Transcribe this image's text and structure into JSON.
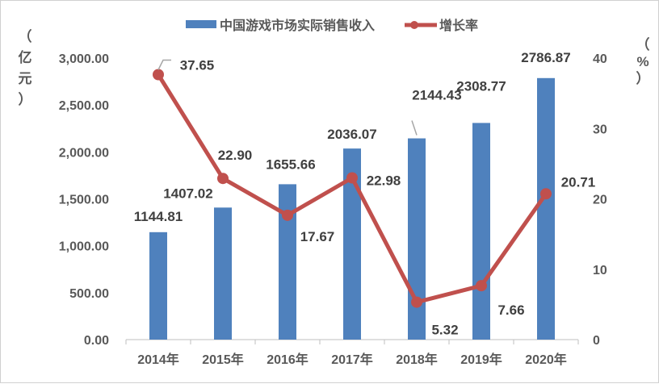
{
  "chart_data": {
    "type": "bar+line",
    "categories": [
      "2014年",
      "2015年",
      "2016年",
      "2017年",
      "2018年",
      "2019年",
      "2020年"
    ],
    "series": [
      {
        "name": "中国游戏市场实际销售收入",
        "type": "bar",
        "axis": "left",
        "color": "#4f81bd",
        "values": [
          1144.81,
          1407.02,
          1655.66,
          2036.07,
          2144.43,
          2308.77,
          2786.87
        ],
        "labels": [
          "1144.81",
          "1407.02",
          "1655.66",
          "2036.07",
          "2144.43",
          "2308.77",
          "2786.87"
        ]
      },
      {
        "name": "增长率",
        "type": "line",
        "axis": "right",
        "color": "#c0504d",
        "values": [
          37.65,
          22.9,
          17.67,
          22.98,
          5.32,
          7.66,
          20.71
        ],
        "labels": [
          "37.65",
          "22.90",
          "17.67",
          "22.98",
          "5.32",
          "7.66",
          "20.71"
        ]
      }
    ],
    "left_axis": {
      "label_chars": [
        "（",
        "亿",
        "元",
        "）"
      ],
      "ylim": [
        0,
        3000
      ],
      "ticks": [
        "0.00",
        "500.00",
        "1,000.00",
        "1,500.00",
        "2,000.00",
        "2,500.00",
        "3,000.00"
      ]
    },
    "right_axis": {
      "label_chars": [
        "（",
        "%",
        "）"
      ],
      "ylim": [
        0,
        40
      ],
      "ticks": [
        "0",
        "10",
        "20",
        "30",
        "40"
      ]
    },
    "grid": false,
    "legend_placement": "top"
  }
}
